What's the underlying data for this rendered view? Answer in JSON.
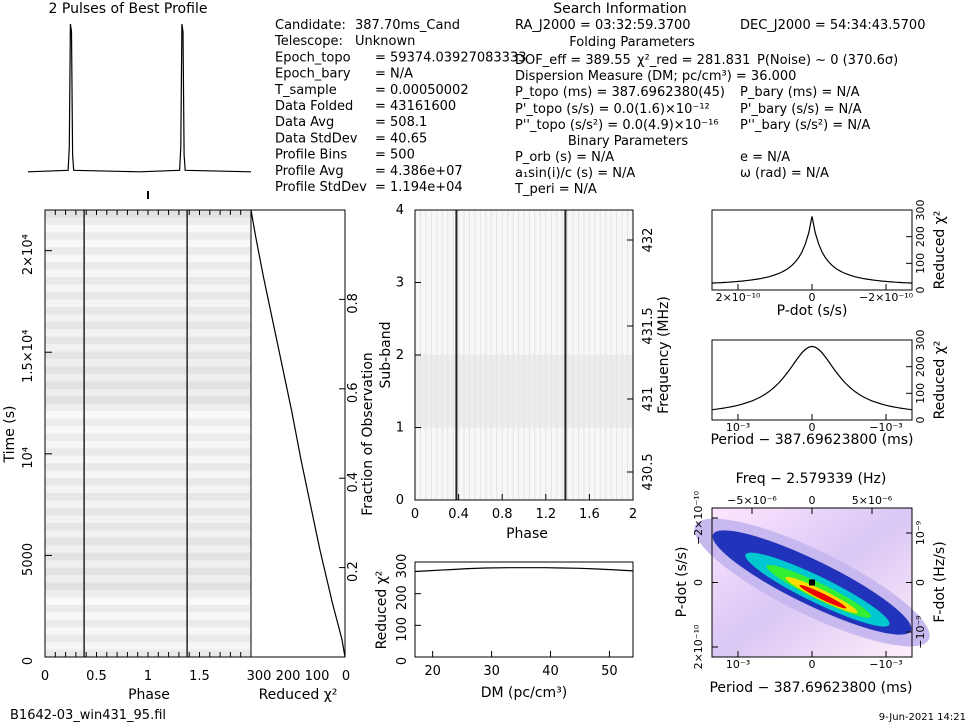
{
  "header": {
    "profile_title": "2 Pulses of Best Profile",
    "search_title": "Search Information",
    "folding_title": "Folding Parameters",
    "binary_title": "Binary Parameters"
  },
  "info_left": [
    {
      "label": "Candidate:",
      "value": "387.70ms_Cand"
    },
    {
      "label": "Telescope:",
      "value": "Unknown"
    },
    {
      "label": "Epoch_topo",
      "value": "= 59374.03927083333"
    },
    {
      "label": "Epoch_bary",
      "value": "= N/A"
    },
    {
      "label": "T_sample",
      "value": "= 0.00050002"
    },
    {
      "label": "Data Folded",
      "value": "= 43161600"
    },
    {
      "label": "Data Avg",
      "value": "= 508.1"
    },
    {
      "label": "Data StdDev",
      "value": "= 40.65"
    },
    {
      "label": "Profile Bins",
      "value": "= 500"
    },
    {
      "label": "Profile Avg",
      "value": "= 4.386e+07"
    },
    {
      "label": "Profile StdDev",
      "value": "= 1.194e+04"
    }
  ],
  "info_mid": {
    "ra": "RA_J2000 = 03:32:59.3700",
    "dec": "DEC_J2000 = 54:34:43.5700",
    "dof": "DOF_eff = 389.55",
    "chi2": "χ²_red = 281.831",
    "pnoise": "P(Noise) ~ 0 (370.6σ)",
    "dm": "Dispersion Measure (DM; pc/cm³) = 36.000",
    "p_topo": "P_topo (ms) = 387.6962380(45)",
    "p_bary": "P_bary (ms) = N/A",
    "pd_topo": "P'_topo (s/s) = 0.0(1.6)×10⁻¹²",
    "pd_bary": "P'_bary (s/s) = N/A",
    "pdd_topo": "P''_topo (s/s²) = 0.0(4.9)×10⁻¹⁶",
    "pdd_bary": "P''_bary (s/s²) = N/A",
    "p_orb": "P_orb (s) = N/A",
    "ecc": "e = N/A",
    "a1": "a₁sin(i)/c (s) = N/A",
    "omega": "ω (rad) = N/A",
    "t_peri": "T_peri = N/A"
  },
  "footer": {
    "filename": "B1642-03_win431_95.fil",
    "date": "9-Jun-2021 14:21"
  },
  "chart_data": [
    {
      "type": "line",
      "name": "profile",
      "title": "2 Pulses of Best Profile",
      "x": [
        0,
        0.36,
        0.37,
        0.38,
        0.39,
        0.4,
        0.41,
        1.0,
        1.36,
        1.37,
        1.38,
        1.39,
        1.4,
        1.41,
        2.0
      ],
      "y": [
        0.04,
        0.05,
        0.2,
        1.0,
        0.95,
        0.15,
        0.05,
        0.04,
        0.05,
        0.2,
        1.0,
        0.95,
        0.15,
        0.05,
        0.04
      ]
    },
    {
      "type": "heatmap",
      "name": "time-phase",
      "xlabel": "Phase",
      "ylabel": "Time (s)",
      "xlim": [
        0,
        2
      ],
      "ylim": [
        0,
        22000
      ],
      "xticks": [
        "0",
        "0.5",
        "1",
        "1.5"
      ],
      "yticks": [
        "0",
        "5000",
        "10⁴",
        "1.5×10⁴",
        "2×10⁴"
      ],
      "pulse_phases": [
        0.38,
        1.38
      ]
    },
    {
      "type": "line",
      "name": "cumulative-chi2",
      "xlabel": "Reduced χ²",
      "ylabel": "Fraction of Observation",
      "xticks": [
        "300",
        "200",
        "100",
        "0"
      ],
      "yticks": [
        "0.2",
        "0.4",
        "0.6",
        "0.8"
      ],
      "x": [
        0,
        10,
        40,
        80,
        110,
        140,
        170,
        200,
        230,
        260,
        285,
        300
      ],
      "y": [
        0,
        0.04,
        0.12,
        0.24,
        0.34,
        0.44,
        0.55,
        0.65,
        0.75,
        0.85,
        0.94,
        1.0
      ]
    },
    {
      "type": "heatmap",
      "name": "subband-phase",
      "xlabel": "Phase",
      "ylabel": "Sub-band",
      "y2label": "Frequency (MHz)",
      "xticks": [
        "0",
        "0.4",
        "0.8",
        "1.2",
        "1.6",
        "2"
      ],
      "yticks": [
        "0",
        "1",
        "2",
        "3",
        "4"
      ],
      "y2ticks": [
        "430.5",
        "431",
        "431.5",
        "432"
      ],
      "pulse_phases": [
        0.38,
        1.38
      ]
    },
    {
      "type": "line",
      "name": "dm-chi2",
      "xlabel": "DM (pc/cm³)",
      "ylabel": "Reduced χ²",
      "xticks": [
        "20",
        "30",
        "40",
        "50"
      ],
      "yticks": [
        "0",
        "100",
        "200",
        "300"
      ],
      "xlim": [
        17,
        54
      ],
      "ylim": [
        0,
        300
      ],
      "x": [
        17,
        19,
        21,
        23,
        26,
        29,
        33,
        36,
        39,
        42,
        45,
        48,
        51,
        54
      ],
      "y": [
        270,
        272,
        274,
        276,
        279,
        281,
        282,
        282,
        282,
        281,
        280,
        278,
        275,
        272
      ]
    },
    {
      "type": "line",
      "name": "pdot-chi2",
      "xlabel": "P-dot (s/s)",
      "ylabel": "Reduced χ²",
      "xticks": [
        "2×10⁻¹⁰",
        "0",
        "−2×10⁻¹⁰"
      ],
      "yticks": [
        "0",
        "100",
        "200",
        "300"
      ],
      "ylim": [
        0,
        300
      ]
    },
    {
      "type": "line",
      "name": "period-chi2",
      "xlabel": "Period − 387.69623800 (ms)",
      "ylabel": "Reduced χ²",
      "xticks": [
        "10⁻³",
        "0",
        "−10⁻³"
      ],
      "yticks": [
        "0",
        "100",
        "200",
        "300"
      ],
      "ylim": [
        0,
        300
      ]
    },
    {
      "type": "heatmap",
      "name": "period-pdot",
      "title": "Freq − 2.579339 (Hz)",
      "xlabel": "Period − 387.69623800 (ms)",
      "ylabel": "P-dot (s/s)",
      "y2label": "F-dot (Hz/s)",
      "xticks": [
        "10⁻³",
        "0",
        "−10⁻³"
      ],
      "x2ticks": [
        "−5×10⁻⁶",
        "0",
        "5×10⁻⁶"
      ],
      "yticks": [
        "2×10⁻¹⁰",
        "0",
        "−2×10⁻¹⁰"
      ],
      "y2ticks": [
        "−10⁻⁹",
        "0",
        "10⁻⁹"
      ]
    }
  ]
}
